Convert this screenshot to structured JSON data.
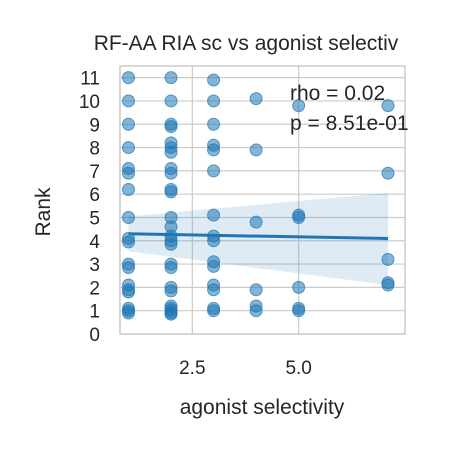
{
  "chart_data": {
    "type": "scatter",
    "title": "RF-AA RIA sc vs agonist selectiv",
    "xlabel": "agonist selectivity",
    "ylabel": "Rank",
    "xlim": [
      0.8,
      7.5
    ],
    "ylim": [
      0,
      11.5
    ],
    "xticks": [
      "2.5",
      "5.0"
    ],
    "xtick_values": [
      2.5,
      5.0
    ],
    "yticks": [
      "0",
      "1",
      "2",
      "3",
      "4",
      "5",
      "6",
      "7",
      "8",
      "9",
      "10",
      "11"
    ],
    "ytick_values": [
      0,
      1,
      2,
      3,
      4,
      5,
      6,
      7,
      8,
      9,
      10,
      11
    ],
    "grid": true,
    "annotations": [
      "rho = 0.02",
      "p = 8.51e-01"
    ],
    "points": [
      [
        1,
        11
      ],
      [
        1,
        10
      ],
      [
        1,
        9
      ],
      [
        1,
        8
      ],
      [
        1,
        7.1
      ],
      [
        1,
        6.9
      ],
      [
        1,
        6.2
      ],
      [
        1,
        5
      ],
      [
        1,
        4.1
      ],
      [
        1,
        3.95
      ],
      [
        1,
        3
      ],
      [
        1,
        2.85
      ],
      [
        1,
        2.1
      ],
      [
        1,
        1.9
      ],
      [
        1,
        1.8
      ],
      [
        1,
        1.1
      ],
      [
        1,
        1.0
      ],
      [
        1,
        0.9
      ],
      [
        2,
        11
      ],
      [
        2,
        10
      ],
      [
        2,
        9
      ],
      [
        2,
        8.9
      ],
      [
        2,
        8.2
      ],
      [
        2,
        8
      ],
      [
        2,
        7.8
      ],
      [
        2,
        7.1
      ],
      [
        2,
        6.9
      ],
      [
        2,
        6.2
      ],
      [
        2,
        6.1
      ],
      [
        2,
        5
      ],
      [
        2,
        4.6
      ],
      [
        2,
        4.2
      ],
      [
        2,
        4.0
      ],
      [
        2,
        3.85
      ],
      [
        2,
        3
      ],
      [
        2,
        2.85
      ],
      [
        2,
        2
      ],
      [
        2,
        1.85
      ],
      [
        2,
        1.2
      ],
      [
        2,
        1.1
      ],
      [
        2,
        1.0
      ],
      [
        2,
        0.9
      ],
      [
        2,
        0.85
      ],
      [
        3,
        10.9
      ],
      [
        3,
        10
      ],
      [
        3,
        9
      ],
      [
        3,
        8.1
      ],
      [
        3,
        7.9
      ],
      [
        3,
        7
      ],
      [
        3,
        5.1
      ],
      [
        3,
        4.2
      ],
      [
        3,
        4.0
      ],
      [
        3,
        3.1
      ],
      [
        3,
        2.9
      ],
      [
        3,
        2.1
      ],
      [
        3,
        1.9
      ],
      [
        3,
        1.1
      ],
      [
        3,
        1.0
      ],
      [
        4,
        10.1
      ],
      [
        4,
        7.9
      ],
      [
        4,
        4.8
      ],
      [
        4,
        1.9
      ],
      [
        4,
        1.2
      ],
      [
        4,
        1.0
      ],
      [
        5,
        9.8
      ],
      [
        5,
        5.1
      ],
      [
        5,
        5.0
      ],
      [
        5,
        2.0
      ],
      [
        5,
        1.1
      ],
      [
        5,
        1.0
      ],
      [
        7.1,
        9.8
      ],
      [
        7.1,
        6.9
      ],
      [
        7.1,
        3.2
      ],
      [
        7.1,
        2.2
      ],
      [
        7.1,
        2.1
      ]
    ],
    "regression": {
      "x": [
        1,
        7.1
      ],
      "y": [
        4.3,
        4.1
      ],
      "ci_lower": [
        3.55,
        2.1
      ],
      "ci_upper": [
        5.05,
        6.05
      ]
    },
    "colors": {
      "point": "#1f77b4",
      "line": "#1f77b4",
      "ci_band": "#1f77b4",
      "grid": "#cccccc",
      "frame": "#cccccc"
    }
  }
}
